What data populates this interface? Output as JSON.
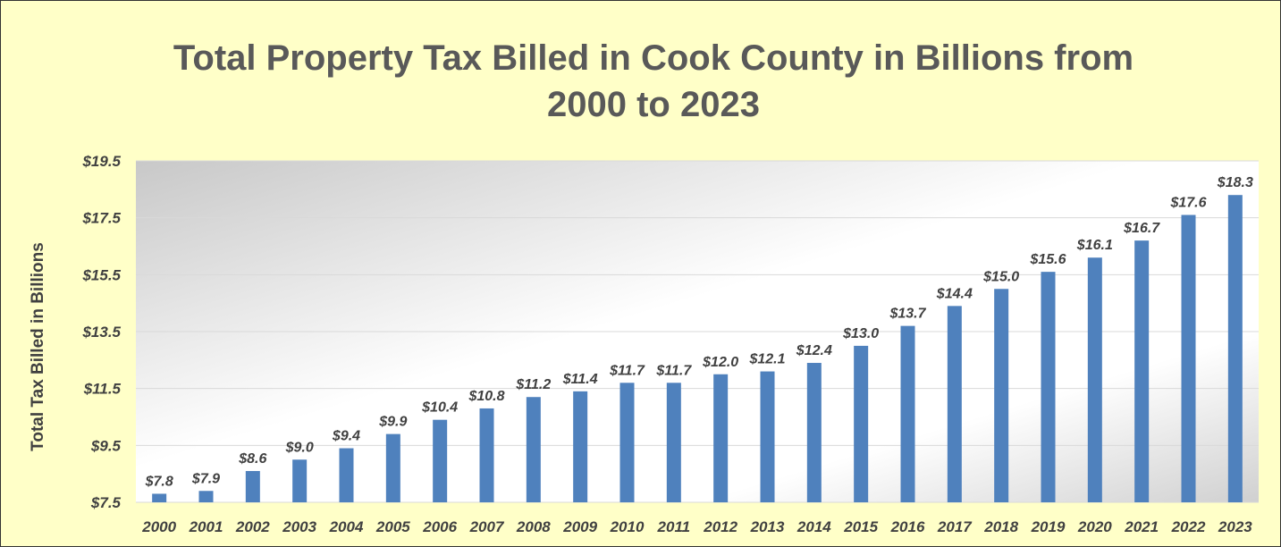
{
  "chart_data": {
    "type": "bar",
    "title": "Total Property Tax Billed in Cook County in Billions from 2000 to 2023",
    "title_lines": [
      "Total Property Tax Billed in Cook County in Billions from",
      "2000 to 2023"
    ],
    "xlabel": "",
    "ylabel": "Total Tax Billed in Billions",
    "categories": [
      "2000",
      "2001",
      "2002",
      "2003",
      "2004",
      "2005",
      "2006",
      "2007",
      "2008",
      "2009",
      "2010",
      "2011",
      "2012",
      "2013",
      "2014",
      "2015",
      "2016",
      "2017",
      "2018",
      "2019",
      "2020",
      "2021",
      "2022",
      "2023"
    ],
    "values": [
      7.8,
      7.9,
      8.6,
      9.0,
      9.4,
      9.9,
      10.4,
      10.8,
      11.2,
      11.4,
      11.7,
      11.7,
      12.0,
      12.1,
      12.4,
      13.0,
      13.7,
      14.4,
      15.0,
      15.6,
      16.1,
      16.7,
      17.6,
      18.3
    ],
    "data_labels": [
      "$7.8",
      "$7.9",
      "$8.6",
      "$9.0",
      "$9.4",
      "$9.9",
      "$10.4",
      "$10.8",
      "$11.2",
      "$11.4",
      "$11.7",
      "$11.7",
      "$12.0",
      "$12.1",
      "$12.4",
      "$13.0",
      "$13.7",
      "$14.4",
      "$15.0",
      "$15.6",
      "$16.1",
      "$16.7",
      "$17.6",
      "$18.3"
    ],
    "ylim": [
      7.5,
      19.5
    ],
    "yticks": [
      7.5,
      9.5,
      11.5,
      13.5,
      15.5,
      17.5,
      19.5
    ],
    "ytick_labels": [
      "$7.5",
      "$9.5",
      "$11.5",
      "$13.5",
      "$15.5",
      "$17.5",
      "$19.5"
    ],
    "grid": true,
    "legend": "none",
    "colors": {
      "bar": "#4f81bd",
      "background": "#ffffc8",
      "plot_gradient_start": "#c8c8c8",
      "plot_gradient_end": "#ffffff",
      "text": "#404040",
      "title": "#595959"
    }
  }
}
